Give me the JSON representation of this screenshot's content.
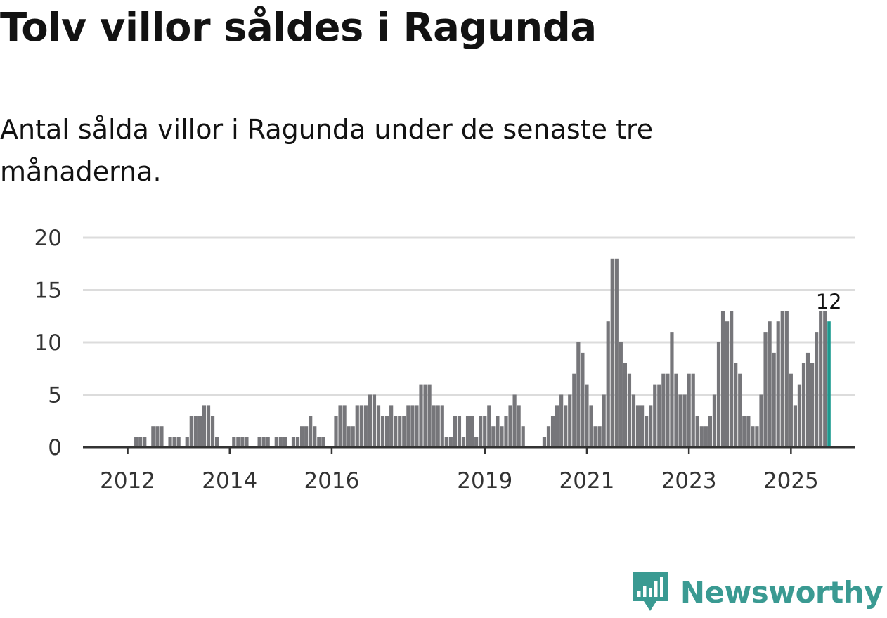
{
  "title": "Tolv villor såldes i Ragunda",
  "subtitle": "Antal sålda villor i Ragunda under de senaste tre månaderna.",
  "logo_text": "Newsworthy",
  "colors": {
    "bar": "#76767a",
    "highlight": "#1b9a8f",
    "grid": "#dcdcdc",
    "axis": "#333333",
    "logo": "#3a9a92"
  },
  "chart_data": {
    "type": "bar",
    "title": "Tolv villor såldes i Ragunda",
    "ylim": [
      0,
      20
    ],
    "yticks": [
      0,
      5,
      10,
      15,
      20
    ],
    "xticks": [
      {
        "label": "2012",
        "index": 9
      },
      {
        "label": "2014",
        "index": 33
      },
      {
        "label": "2016",
        "index": 57
      },
      {
        "label": "2019",
        "index": 93
      },
      {
        "label": "2021",
        "index": 117
      },
      {
        "label": "2023",
        "index": 141
      },
      {
        "label": "2025",
        "index": 165
      }
    ],
    "last_value_label": "12",
    "values": [
      0,
      0,
      0,
      0,
      0,
      0,
      0,
      0,
      0,
      0,
      0,
      1,
      1,
      1,
      0,
      2,
      2,
      2,
      0,
      1,
      1,
      1,
      0,
      1,
      3,
      3,
      3,
      4,
      4,
      3,
      1,
      0,
      0,
      0,
      1,
      1,
      1,
      1,
      0,
      0,
      1,
      1,
      1,
      0,
      1,
      1,
      1,
      0,
      1,
      1,
      2,
      2,
      3,
      2,
      1,
      1,
      0,
      0,
      3,
      4,
      4,
      2,
      2,
      4,
      4,
      4,
      5,
      5,
      4,
      3,
      3,
      4,
      3,
      3,
      3,
      4,
      4,
      4,
      6,
      6,
      6,
      4,
      4,
      4,
      1,
      1,
      3,
      3,
      1,
      3,
      3,
      1,
      3,
      3,
      4,
      2,
      3,
      2,
      3,
      4,
      5,
      4,
      2,
      0,
      0,
      0,
      0,
      1,
      2,
      3,
      4,
      5,
      4,
      5,
      7,
      10,
      9,
      6,
      4,
      2,
      2,
      5,
      12,
      18,
      18,
      10,
      8,
      7,
      5,
      4,
      4,
      3,
      4,
      6,
      6,
      7,
      7,
      11,
      7,
      5,
      5,
      7,
      7,
      3,
      2,
      2,
      3,
      5,
      10,
      13,
      12,
      13,
      8,
      7,
      3,
      3,
      2,
      2,
      5,
      11,
      12,
      9,
      12,
      13,
      13,
      7,
      4,
      6,
      8,
      9,
      8,
      11,
      13,
      13,
      12
    ]
  }
}
